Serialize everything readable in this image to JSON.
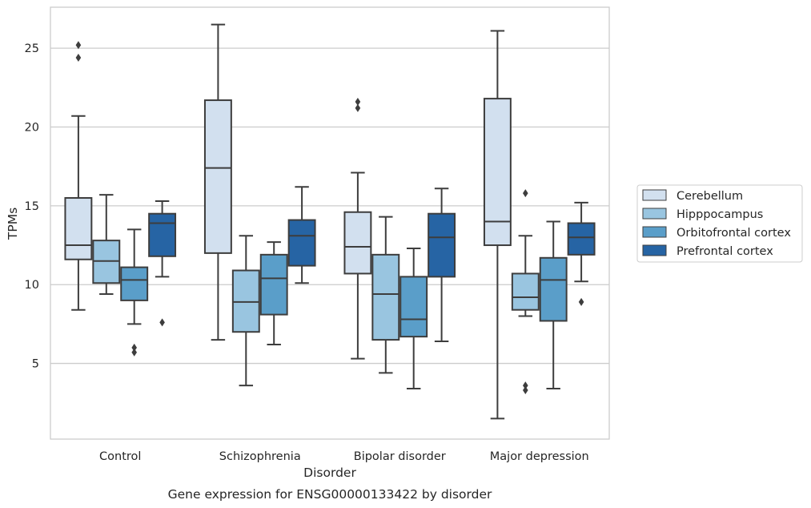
{
  "caption": "Gene expression for ENSG00000133422 by disorder",
  "chart_data": {
    "type": "box",
    "xlabel": "Disorder",
    "ylabel": "TPMs",
    "ylim": [
      0.2,
      27.6
    ],
    "yticks": [
      5,
      10,
      15,
      20,
      25
    ],
    "grid": "horizontal",
    "legend_placement": "right",
    "categories": [
      "Control",
      "Schizophrenia",
      "Bipolar disorder",
      "Major depression"
    ],
    "series": [
      {
        "name": "Cerebellum",
        "color": "#d2e0ef",
        "boxes": [
          {
            "whislo": 8.4,
            "q1": 11.6,
            "med": 12.5,
            "q3": 15.5,
            "whishi": 20.7,
            "fliers": [
              24.4,
              25.2
            ]
          },
          {
            "whislo": 6.5,
            "q1": 12.0,
            "med": 17.4,
            "q3": 21.7,
            "whishi": 26.5,
            "fliers": []
          },
          {
            "whislo": 5.3,
            "q1": 10.7,
            "med": 12.4,
            "q3": 14.6,
            "whishi": 17.1,
            "fliers": [
              21.2,
              21.6
            ]
          },
          {
            "whislo": 1.5,
            "q1": 12.5,
            "med": 14.0,
            "q3": 21.8,
            "whishi": 26.1,
            "fliers": []
          }
        ]
      },
      {
        "name": "Hipppocampus",
        "color": "#99c5e0",
        "boxes": [
          {
            "whislo": 9.4,
            "q1": 10.1,
            "med": 11.5,
            "q3": 12.8,
            "whishi": 15.7,
            "fliers": []
          },
          {
            "whislo": 3.6,
            "q1": 7.0,
            "med": 8.9,
            "q3": 10.9,
            "whishi": 13.1,
            "fliers": []
          },
          {
            "whislo": 4.4,
            "q1": 6.5,
            "med": 9.4,
            "q3": 11.9,
            "whishi": 14.3,
            "fliers": []
          },
          {
            "whislo": 8.0,
            "q1": 8.4,
            "med": 9.2,
            "q3": 10.7,
            "whishi": 13.1,
            "fliers": [
              3.3,
              3.6,
              15.8
            ]
          }
        ]
      },
      {
        "name": "Orbitofrontal cortex",
        "color": "#5a9ec9",
        "boxes": [
          {
            "whislo": 7.5,
            "q1": 9.0,
            "med": 10.3,
            "q3": 11.1,
            "whishi": 13.5,
            "fliers": [
              5.7,
              6.0
            ]
          },
          {
            "whislo": 6.2,
            "q1": 8.1,
            "med": 10.4,
            "q3": 11.9,
            "whishi": 12.7,
            "fliers": []
          },
          {
            "whislo": 3.4,
            "q1": 6.7,
            "med": 7.8,
            "q3": 10.5,
            "whishi": 12.3,
            "fliers": []
          },
          {
            "whislo": 3.4,
            "q1": 7.7,
            "med": 10.3,
            "q3": 11.7,
            "whishi": 14.0,
            "fliers": []
          }
        ]
      },
      {
        "name": "Prefrontal cortex",
        "color": "#2664a4",
        "boxes": [
          {
            "whislo": 10.5,
            "q1": 11.8,
            "med": 13.9,
            "q3": 14.5,
            "whishi": 15.3,
            "fliers": [
              7.6
            ]
          },
          {
            "whislo": 10.1,
            "q1": 11.2,
            "med": 13.1,
            "q3": 14.1,
            "whishi": 16.2,
            "fliers": []
          },
          {
            "whislo": 6.4,
            "q1": 10.5,
            "med": 13.0,
            "q3": 14.5,
            "whishi": 16.1,
            "fliers": []
          },
          {
            "whislo": 10.2,
            "q1": 11.9,
            "med": 13.0,
            "q3": 13.9,
            "whishi": 15.2,
            "fliers": [
              8.9
            ]
          }
        ]
      }
    ]
  }
}
